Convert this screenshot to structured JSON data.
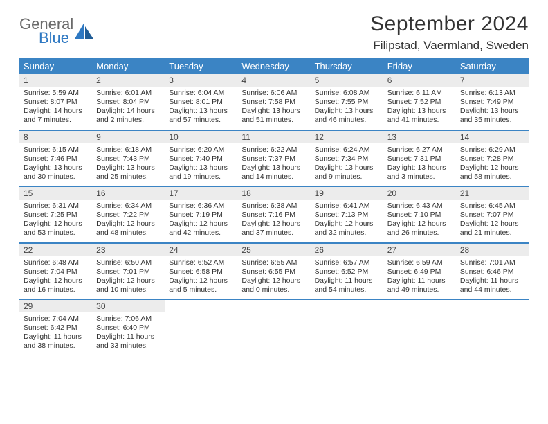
{
  "brand": {
    "line1": "General",
    "line2": "Blue"
  },
  "title": "September 2024",
  "location": "Filipstad, Vaermland, Sweden",
  "colors": {
    "header_bg": "#3b84c4",
    "header_fg": "#ffffff",
    "daynum_bg": "#ececec",
    "row_divider": "#3b84c4",
    "text": "#333333",
    "logo_gray": "#6a6a6a",
    "logo_blue": "#2e78c2",
    "page_bg": "#ffffff"
  },
  "typography": {
    "title_fontsize": 30,
    "location_fontsize": 17,
    "head_fontsize": 13,
    "daynum_fontsize": 12,
    "cell_fontsize": 10.5
  },
  "weekdays": [
    "Sunday",
    "Monday",
    "Tuesday",
    "Wednesday",
    "Thursday",
    "Friday",
    "Saturday"
  ],
  "days": [
    {
      "n": "1",
      "sunrise": "Sunrise: 5:59 AM",
      "sunset": "Sunset: 8:07 PM",
      "daylight": "Daylight: 14 hours and 7 minutes."
    },
    {
      "n": "2",
      "sunrise": "Sunrise: 6:01 AM",
      "sunset": "Sunset: 8:04 PM",
      "daylight": "Daylight: 14 hours and 2 minutes."
    },
    {
      "n": "3",
      "sunrise": "Sunrise: 6:04 AM",
      "sunset": "Sunset: 8:01 PM",
      "daylight": "Daylight: 13 hours and 57 minutes."
    },
    {
      "n": "4",
      "sunrise": "Sunrise: 6:06 AM",
      "sunset": "Sunset: 7:58 PM",
      "daylight": "Daylight: 13 hours and 51 minutes."
    },
    {
      "n": "5",
      "sunrise": "Sunrise: 6:08 AM",
      "sunset": "Sunset: 7:55 PM",
      "daylight": "Daylight: 13 hours and 46 minutes."
    },
    {
      "n": "6",
      "sunrise": "Sunrise: 6:11 AM",
      "sunset": "Sunset: 7:52 PM",
      "daylight": "Daylight: 13 hours and 41 minutes."
    },
    {
      "n": "7",
      "sunrise": "Sunrise: 6:13 AM",
      "sunset": "Sunset: 7:49 PM",
      "daylight": "Daylight: 13 hours and 35 minutes."
    },
    {
      "n": "8",
      "sunrise": "Sunrise: 6:15 AM",
      "sunset": "Sunset: 7:46 PM",
      "daylight": "Daylight: 13 hours and 30 minutes."
    },
    {
      "n": "9",
      "sunrise": "Sunrise: 6:18 AM",
      "sunset": "Sunset: 7:43 PM",
      "daylight": "Daylight: 13 hours and 25 minutes."
    },
    {
      "n": "10",
      "sunrise": "Sunrise: 6:20 AM",
      "sunset": "Sunset: 7:40 PM",
      "daylight": "Daylight: 13 hours and 19 minutes."
    },
    {
      "n": "11",
      "sunrise": "Sunrise: 6:22 AM",
      "sunset": "Sunset: 7:37 PM",
      "daylight": "Daylight: 13 hours and 14 minutes."
    },
    {
      "n": "12",
      "sunrise": "Sunrise: 6:24 AM",
      "sunset": "Sunset: 7:34 PM",
      "daylight": "Daylight: 13 hours and 9 minutes."
    },
    {
      "n": "13",
      "sunrise": "Sunrise: 6:27 AM",
      "sunset": "Sunset: 7:31 PM",
      "daylight": "Daylight: 13 hours and 3 minutes."
    },
    {
      "n": "14",
      "sunrise": "Sunrise: 6:29 AM",
      "sunset": "Sunset: 7:28 PM",
      "daylight": "Daylight: 12 hours and 58 minutes."
    },
    {
      "n": "15",
      "sunrise": "Sunrise: 6:31 AM",
      "sunset": "Sunset: 7:25 PM",
      "daylight": "Daylight: 12 hours and 53 minutes."
    },
    {
      "n": "16",
      "sunrise": "Sunrise: 6:34 AM",
      "sunset": "Sunset: 7:22 PM",
      "daylight": "Daylight: 12 hours and 48 minutes."
    },
    {
      "n": "17",
      "sunrise": "Sunrise: 6:36 AM",
      "sunset": "Sunset: 7:19 PM",
      "daylight": "Daylight: 12 hours and 42 minutes."
    },
    {
      "n": "18",
      "sunrise": "Sunrise: 6:38 AM",
      "sunset": "Sunset: 7:16 PM",
      "daylight": "Daylight: 12 hours and 37 minutes."
    },
    {
      "n": "19",
      "sunrise": "Sunrise: 6:41 AM",
      "sunset": "Sunset: 7:13 PM",
      "daylight": "Daylight: 12 hours and 32 minutes."
    },
    {
      "n": "20",
      "sunrise": "Sunrise: 6:43 AM",
      "sunset": "Sunset: 7:10 PM",
      "daylight": "Daylight: 12 hours and 26 minutes."
    },
    {
      "n": "21",
      "sunrise": "Sunrise: 6:45 AM",
      "sunset": "Sunset: 7:07 PM",
      "daylight": "Daylight: 12 hours and 21 minutes."
    },
    {
      "n": "22",
      "sunrise": "Sunrise: 6:48 AM",
      "sunset": "Sunset: 7:04 PM",
      "daylight": "Daylight: 12 hours and 16 minutes."
    },
    {
      "n": "23",
      "sunrise": "Sunrise: 6:50 AM",
      "sunset": "Sunset: 7:01 PM",
      "daylight": "Daylight: 12 hours and 10 minutes."
    },
    {
      "n": "24",
      "sunrise": "Sunrise: 6:52 AM",
      "sunset": "Sunset: 6:58 PM",
      "daylight": "Daylight: 12 hours and 5 minutes."
    },
    {
      "n": "25",
      "sunrise": "Sunrise: 6:55 AM",
      "sunset": "Sunset: 6:55 PM",
      "daylight": "Daylight: 12 hours and 0 minutes."
    },
    {
      "n": "26",
      "sunrise": "Sunrise: 6:57 AM",
      "sunset": "Sunset: 6:52 PM",
      "daylight": "Daylight: 11 hours and 54 minutes."
    },
    {
      "n": "27",
      "sunrise": "Sunrise: 6:59 AM",
      "sunset": "Sunset: 6:49 PM",
      "daylight": "Daylight: 11 hours and 49 minutes."
    },
    {
      "n": "28",
      "sunrise": "Sunrise: 7:01 AM",
      "sunset": "Sunset: 6:46 PM",
      "daylight": "Daylight: 11 hours and 44 minutes."
    },
    {
      "n": "29",
      "sunrise": "Sunrise: 7:04 AM",
      "sunset": "Sunset: 6:42 PM",
      "daylight": "Daylight: 11 hours and 38 minutes."
    },
    {
      "n": "30",
      "sunrise": "Sunrise: 7:06 AM",
      "sunset": "Sunset: 6:40 PM",
      "daylight": "Daylight: 11 hours and 33 minutes."
    }
  ]
}
